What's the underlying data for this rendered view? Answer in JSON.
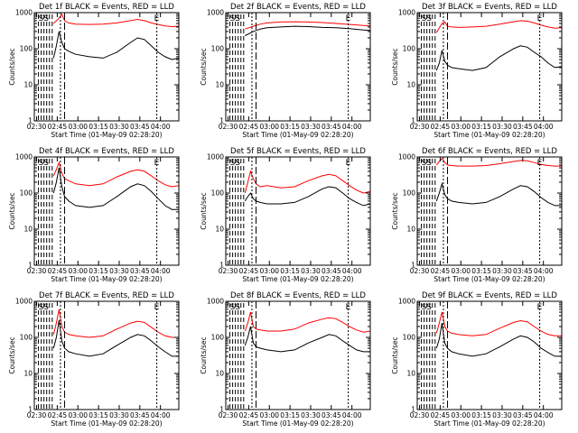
{
  "figure": {
    "xlabel": "Start Time (01-May-09 02:28:20)",
    "ylabel": "Counts/sec",
    "x_ticks": [
      "02:30",
      "02:45",
      "03:00",
      "03:15",
      "03:30",
      "03:45",
      "04:00"
    ],
    "y_ticks": [
      "1",
      "10",
      "100",
      "1000"
    ],
    "annotations": [
      "SS",
      "E"
    ]
  },
  "colors": {
    "events": "#000000",
    "lld": "#ff0000"
  },
  "chart_data": [
    {
      "type": "line",
      "panel": "det-1f",
      "title": "Det 1f BLACK = Events, RED = LLD",
      "ylabel": "Counts/sec",
      "xlabel": "Start Time (01-May-09 02:28:20)",
      "x_unit": "minutes after 02:28:20",
      "yscale": "log",
      "ylim": [
        1,
        1000
      ],
      "xlim": [
        0,
        105
      ],
      "series": [
        {
          "name": "BLACK = Events",
          "x": [
            14,
            16,
            18,
            20,
            22,
            25,
            30,
            40,
            50,
            60,
            70,
            75,
            80,
            85,
            90,
            95,
            100,
            105
          ],
          "y": [
            55,
            120,
            300,
            150,
            100,
            85,
            70,
            60,
            55,
            80,
            150,
            200,
            180,
            120,
            80,
            60,
            50,
            55
          ]
        },
        {
          "name": "RED = LLD",
          "x": [
            14,
            18,
            20,
            22,
            25,
            30,
            40,
            50,
            60,
            70,
            75,
            80,
            85,
            90,
            95,
            100,
            105
          ],
          "y": [
            500,
            700,
            900,
            600,
            520,
            480,
            470,
            480,
            520,
            600,
            650,
            600,
            520,
            470,
            430,
            410,
            420
          ]
        }
      ]
    },
    {
      "type": "line",
      "panel": "det-2f",
      "title": "Det 2f BLACK = Events, RED = LLD",
      "ylabel": "Counts/sec",
      "xlabel": "Start Time (01-May-09 02:28:20)",
      "x_unit": "minutes after 02:28:20",
      "yscale": "log",
      "ylim": [
        1,
        1000
      ],
      "xlim": [
        0,
        105
      ],
      "series": [
        {
          "name": "BLACK = Events",
          "x": [
            14,
            20,
            25,
            30,
            40,
            50,
            60,
            70,
            80,
            90,
            100,
            105
          ],
          "y": [
            230,
            300,
            350,
            380,
            400,
            420,
            410,
            390,
            380,
            360,
            330,
            320
          ]
        },
        {
          "name": "RED = LLD",
          "x": [
            14,
            20,
            25,
            30,
            40,
            50,
            60,
            70,
            80,
            90,
            100,
            105
          ],
          "y": [
            350,
            420,
            480,
            520,
            550,
            560,
            550,
            530,
            500,
            470,
            440,
            430
          ]
        }
      ]
    },
    {
      "type": "line",
      "panel": "det-3f",
      "title": "Det 3f BLACK = Events, RED = LLD",
      "ylabel": "Counts/sec",
      "xlabel": "Start Time (01-May-09 02:28:20)",
      "x_unit": "minutes after 02:28:20",
      "yscale": "log",
      "ylim": [
        1,
        1000
      ],
      "xlim": [
        0,
        105
      ],
      "series": [
        {
          "name": "BLACK = Events",
          "x": [
            14,
            16,
            18,
            20,
            22,
            25,
            30,
            40,
            50,
            60,
            70,
            75,
            80,
            85,
            90,
            95,
            100,
            105
          ],
          "y": [
            25,
            40,
            90,
            45,
            35,
            30,
            28,
            25,
            30,
            60,
            100,
            120,
            110,
            80,
            60,
            40,
            30,
            32
          ]
        },
        {
          "name": "RED = LLD",
          "x": [
            14,
            18,
            20,
            22,
            25,
            30,
            40,
            50,
            60,
            70,
            75,
            80,
            85,
            90,
            95,
            100,
            105
          ],
          "y": [
            280,
            500,
            550,
            420,
            400,
            390,
            400,
            420,
            480,
            560,
            600,
            580,
            520,
            450,
            400,
            370,
            380
          ]
        }
      ]
    },
    {
      "type": "line",
      "panel": "det-4f",
      "title": "Det 4f BLACK = Events, RED = LLD",
      "ylabel": "Counts/sec",
      "xlabel": "Start Time (01-May-09 02:28:20)",
      "x_unit": "minutes after 02:28:20",
      "yscale": "log",
      "ylim": [
        1,
        1000
      ],
      "xlim": [
        0,
        105
      ],
      "series": [
        {
          "name": "BLACK = Events",
          "x": [
            14,
            16,
            18,
            20,
            22,
            25,
            30,
            40,
            50,
            60,
            70,
            75,
            80,
            85,
            90,
            95,
            100,
            105
          ],
          "y": [
            100,
            200,
            500,
            150,
            80,
            60,
            45,
            40,
            45,
            80,
            150,
            180,
            160,
            110,
            70,
            45,
            35,
            35
          ]
        },
        {
          "name": "RED = LLD",
          "x": [
            14,
            16,
            18,
            20,
            22,
            25,
            30,
            40,
            50,
            60,
            70,
            75,
            80,
            85,
            90,
            95,
            100,
            105
          ],
          "y": [
            300,
            450,
            700,
            350,
            250,
            220,
            180,
            160,
            180,
            280,
            400,
            440,
            400,
            300,
            220,
            170,
            150,
            160
          ]
        }
      ]
    },
    {
      "type": "line",
      "panel": "det-5f",
      "title": "Det 5f BLACK = Events, RED = LLD",
      "ylabel": "Counts/sec",
      "xlabel": "Start Time (01-May-09 02:28:20)",
      "x_unit": "minutes after 02:28:20",
      "yscale": "log",
      "ylim": [
        1,
        1000
      ],
      "xlim": [
        0,
        105
      ],
      "series": [
        {
          "name": "BLACK = Events",
          "x": [
            14,
            16,
            18,
            20,
            22,
            25,
            30,
            40,
            50,
            60,
            70,
            75,
            80,
            85,
            90,
            95,
            100,
            105
          ],
          "y": [
            60,
            80,
            100,
            70,
            60,
            55,
            50,
            50,
            55,
            80,
            130,
            150,
            140,
            100,
            70,
            55,
            45,
            50
          ]
        },
        {
          "name": "RED = LLD",
          "x": [
            14,
            16,
            18,
            20,
            22,
            25,
            30,
            40,
            50,
            60,
            70,
            75,
            80,
            85,
            90,
            95,
            100,
            105
          ],
          "y": [
            100,
            200,
            400,
            250,
            180,
            150,
            160,
            140,
            150,
            220,
            300,
            330,
            300,
            220,
            160,
            120,
            100,
            110
          ]
        }
      ]
    },
    {
      "type": "line",
      "panel": "det-6f",
      "title": "Det 6f BLACK = Events, RED = LLD",
      "ylabel": "Counts/sec",
      "xlabel": "Start Time (01-May-09 02:28:20)",
      "x_unit": "minutes after 02:28:20",
      "yscale": "log",
      "ylim": [
        1,
        1000
      ],
      "xlim": [
        0,
        105
      ],
      "series": [
        {
          "name": "BLACK = Events",
          "x": [
            14,
            16,
            18,
            20,
            22,
            25,
            30,
            40,
            50,
            60,
            70,
            75,
            80,
            85,
            90,
            95,
            100,
            105
          ],
          "y": [
            60,
            100,
            180,
            90,
            70,
            60,
            55,
            50,
            55,
            80,
            130,
            160,
            150,
            110,
            75,
            55,
            45,
            45
          ]
        },
        {
          "name": "RED = LLD",
          "x": [
            14,
            16,
            18,
            20,
            22,
            25,
            30,
            40,
            50,
            60,
            70,
            75,
            80,
            85,
            90,
            95,
            100,
            105
          ],
          "y": [
            600,
            750,
            900,
            700,
            600,
            580,
            560,
            560,
            580,
            650,
            750,
            800,
            780,
            700,
            620,
            580,
            560,
            560
          ]
        }
      ]
    },
    {
      "type": "line",
      "panel": "det-7f",
      "title": "Det 7f BLACK = Events, RED = LLD",
      "ylabel": "Counts/sec",
      "xlabel": "Start Time (01-May-09 02:28:20)",
      "x_unit": "minutes after 02:28:20",
      "yscale": "log",
      "ylim": [
        1,
        1000
      ],
      "xlim": [
        0,
        105
      ],
      "series": [
        {
          "name": "BLACK = Events",
          "x": [
            14,
            16,
            18,
            20,
            22,
            25,
            30,
            40,
            50,
            60,
            70,
            75,
            80,
            85,
            90,
            95,
            100,
            105
          ],
          "y": [
            50,
            100,
            300,
            80,
            50,
            40,
            35,
            30,
            35,
            60,
            100,
            120,
            110,
            80,
            55,
            40,
            30,
            30
          ]
        },
        {
          "name": "RED = LLD",
          "x": [
            14,
            16,
            18,
            20,
            22,
            25,
            30,
            40,
            50,
            60,
            70,
            75,
            80,
            85,
            90,
            95,
            100,
            105
          ],
          "y": [
            120,
            250,
            600,
            200,
            140,
            120,
            110,
            100,
            110,
            170,
            250,
            280,
            260,
            190,
            140,
            110,
            100,
            100
          ]
        }
      ]
    },
    {
      "type": "line",
      "panel": "det-8f",
      "title": "Det 8f BLACK = Events, RED = LLD",
      "ylabel": "Counts/sec",
      "xlabel": "Start Time (01-May-09 02:28:20)",
      "x_unit": "minutes after 02:28:20",
      "yscale": "log",
      "ylim": [
        1,
        1000
      ],
      "xlim": [
        0,
        105
      ],
      "series": [
        {
          "name": "BLACK = Events",
          "x": [
            14,
            16,
            18,
            20,
            22,
            25,
            30,
            40,
            50,
            60,
            70,
            75,
            80,
            85,
            90,
            95,
            100,
            105
          ],
          "y": [
            60,
            100,
            200,
            70,
            55,
            50,
            45,
            40,
            45,
            70,
            100,
            120,
            110,
            80,
            60,
            45,
            40,
            40
          ]
        },
        {
          "name": "RED = LLD",
          "x": [
            14,
            16,
            18,
            20,
            22,
            25,
            30,
            40,
            50,
            60,
            70,
            75,
            80,
            85,
            90,
            95,
            100,
            105
          ],
          "y": [
            150,
            250,
            500,
            200,
            170,
            160,
            150,
            150,
            170,
            250,
            320,
            350,
            330,
            260,
            200,
            160,
            140,
            150
          ]
        }
      ]
    },
    {
      "type": "line",
      "panel": "det-9f",
      "title": "Det 9f BLACK = Events, RED = LLD",
      "ylabel": "Counts/sec",
      "xlabel": "Start Time (01-May-09 02:28:20)",
      "x_unit": "minutes after 02:28:20",
      "yscale": "log",
      "ylim": [
        1,
        1000
      ],
      "xlim": [
        0,
        105
      ],
      "series": [
        {
          "name": "BLACK = Events",
          "x": [
            14,
            16,
            18,
            20,
            22,
            25,
            30,
            40,
            50,
            60,
            70,
            75,
            80,
            85,
            90,
            95,
            100,
            105
          ],
          "y": [
            50,
            90,
            250,
            70,
            50,
            40,
            35,
            30,
            35,
            55,
            90,
            110,
            100,
            75,
            50,
            38,
            30,
            30
          ]
        },
        {
          "name": "RED = LLD",
          "x": [
            14,
            16,
            18,
            20,
            22,
            25,
            30,
            40,
            50,
            60,
            70,
            75,
            80,
            85,
            90,
            95,
            100,
            105
          ],
          "y": [
            130,
            250,
            500,
            200,
            150,
            130,
            120,
            110,
            120,
            180,
            260,
            290,
            270,
            200,
            150,
            120,
            110,
            110
          ]
        }
      ]
    }
  ]
}
